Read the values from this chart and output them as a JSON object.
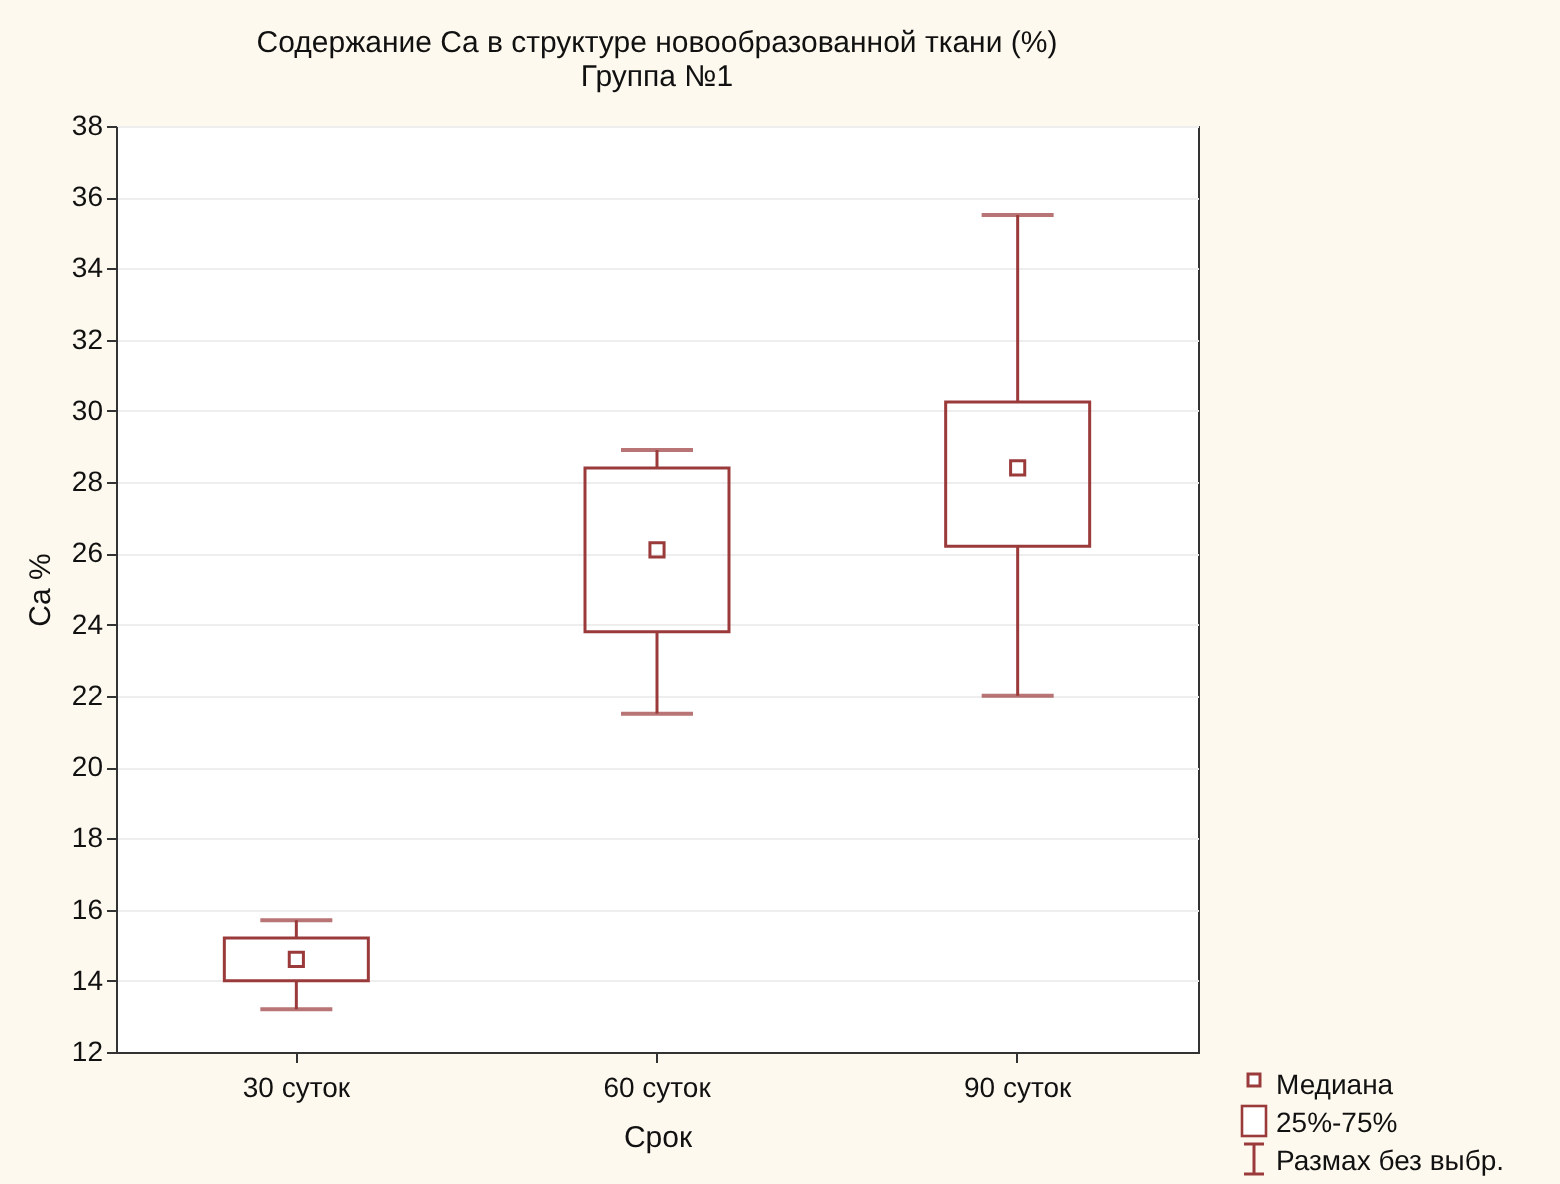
{
  "chart_data": {
    "type": "box",
    "title": "Содержание Ca в структуре новообразованной ткани (%)",
    "subtitle": "Группа №1",
    "xlabel": "Срок",
    "ylabel": "Ca %",
    "categories": [
      "30 суток",
      "60 суток",
      "90 суток"
    ],
    "boxes": [
      {
        "low": 13.2,
        "q1": 14.0,
        "median": 14.6,
        "q3": 15.2,
        "high": 15.7
      },
      {
        "low": 21.5,
        "q1": 23.8,
        "median": 26.1,
        "q3": 28.4,
        "high": 28.9
      },
      {
        "low": 22.0,
        "q1": 26.2,
        "median": 28.4,
        "q3": 30.25,
        "high": 35.5
      }
    ],
    "color": "#9b3a3a",
    "ylim": [
      12,
      38
    ],
    "yticks": [
      12,
      14,
      16,
      18,
      20,
      22,
      24,
      26,
      28,
      30,
      32,
      34,
      36,
      38
    ],
    "grid": "y",
    "marker": "square",
    "annotations": [
      "Медиана",
      "25%-75%",
      "Размах без выбр."
    ]
  }
}
